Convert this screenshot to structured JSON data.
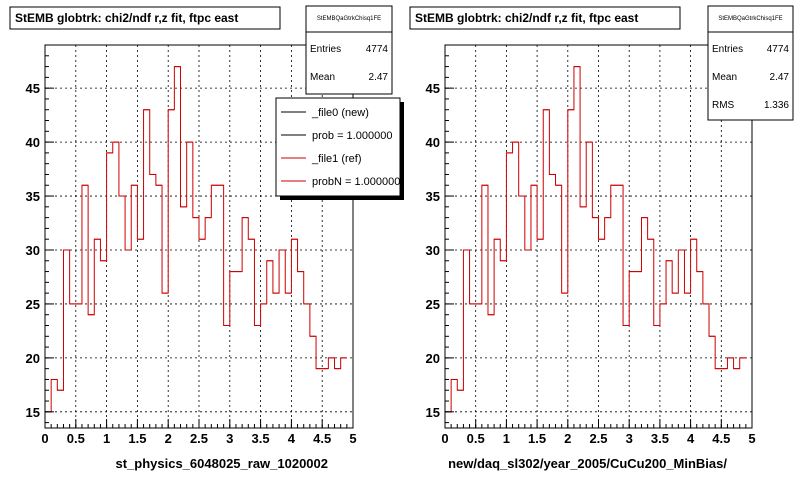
{
  "chart_data": [
    {
      "type": "step",
      "title": "StEMB globtrk: chi2/ndf r,z fit, ftpc east",
      "xlabel": "st_physics_6048025_raw_1020002",
      "ylabel": "",
      "xlim": [
        0,
        5
      ],
      "ylim": [
        13.5,
        49
      ],
      "xticks": [
        "0",
        "0.5",
        "1",
        "1.5",
        "2",
        "2.5",
        "3",
        "3.5",
        "4",
        "4.5",
        "5"
      ],
      "yticks": [
        "15",
        "20",
        "25",
        "30",
        "35",
        "40",
        "45"
      ],
      "grid": true,
      "stats": {
        "name": "StEMBQaGtrkChisq1FE",
        "rows": [
          {
            "label": "Entries",
            "value": "4774"
          },
          {
            "label": "Mean",
            "value": "2.47"
          }
        ]
      },
      "legend": {
        "placement": "top-right",
        "entries": [
          {
            "label": "_file0 (new)",
            "color": "#000000"
          },
          {
            "label": "prob = 1.000000",
            "color": "#000000"
          },
          {
            "label": "_file1 (ref)",
            "color": "#cc0000"
          },
          {
            "label": "probN = 1.000000",
            "color": "#cc0000"
          }
        ]
      },
      "series": [
        {
          "color": "#cc0000",
          "bin_width": 0.1,
          "x_start": 0,
          "values": [
            15,
            18,
            17,
            30,
            25,
            25,
            36,
            24,
            31,
            29,
            39,
            40,
            35,
            30,
            36,
            31,
            43,
            37,
            36,
            26,
            43,
            47,
            34,
            40,
            33,
            31,
            33,
            36,
            36,
            23,
            28,
            28,
            33,
            31,
            23,
            25,
            29,
            26,
            30,
            26,
            31,
            28,
            25,
            22,
            19,
            19,
            20,
            19,
            20
          ]
        }
      ]
    },
    {
      "type": "step",
      "title": "StEMB globtrk: chi2/ndf r,z fit, ftpc east",
      "xlabel": "new/daq_sl302/year_2005/CuCu200_MinBias/",
      "ylabel": "",
      "xlim": [
        0,
        5
      ],
      "ylim": [
        13.5,
        49
      ],
      "xticks": [
        "0",
        "0.5",
        "1",
        "1.5",
        "2",
        "2.5",
        "3",
        "3.5",
        "4",
        "4.5",
        "5"
      ],
      "yticks": [
        "15",
        "20",
        "25",
        "30",
        "35",
        "40",
        "45"
      ],
      "grid": true,
      "stats": {
        "name": "StEMBQaGtrkChisq1FE",
        "rows": [
          {
            "label": "Entries",
            "value": "4774"
          },
          {
            "label": "Mean",
            "value": "2.47"
          },
          {
            "label": "RMS",
            "value": "1.336"
          }
        ]
      },
      "legend": null,
      "series": [
        {
          "color": "#cc0000",
          "bin_width": 0.1,
          "x_start": 0,
          "values": [
            15,
            18,
            17,
            30,
            25,
            25,
            36,
            24,
            31,
            29,
            39,
            40,
            35,
            30,
            36,
            31,
            43,
            37,
            36,
            26,
            43,
            47,
            34,
            40,
            33,
            31,
            33,
            36,
            36,
            23,
            28,
            28,
            33,
            31,
            23,
            25,
            29,
            26,
            30,
            26,
            31,
            28,
            25,
            22,
            19,
            19,
            20,
            19,
            20
          ]
        }
      ]
    }
  ]
}
